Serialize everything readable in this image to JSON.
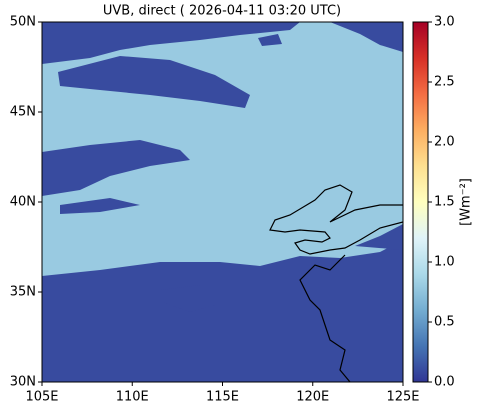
{
  "chart_data": {
    "type": "heatmap",
    "title": "UVB, direct ( 2026-04-11 03:20 UTC)",
    "xlim": [
      105,
      125
    ],
    "xticks": [
      {
        "value": 105,
        "label": "105E"
      },
      {
        "value": 110,
        "label": "110E"
      },
      {
        "value": 115,
        "label": "115E"
      },
      {
        "value": 120,
        "label": "120E"
      },
      {
        "value": 125,
        "label": "125E"
      }
    ],
    "ylim": [
      30,
      50
    ],
    "yticks": [
      {
        "value": 30,
        "label": "30N"
      },
      {
        "value": 35,
        "label": "35N"
      },
      {
        "value": 40,
        "label": "40N"
      },
      {
        "value": 45,
        "label": "45N"
      },
      {
        "value": 50,
        "label": "50N"
      }
    ],
    "field_values": [
      0.8,
      0.1
    ],
    "colorbar_label": "[Wm⁻²]",
    "clim": [
      0,
      3
    ],
    "cticks": [
      {
        "value": 0,
        "label": "0.0"
      },
      {
        "value": 0.5,
        "label": "0.5"
      },
      {
        "value": 1,
        "label": "1.0"
      },
      {
        "value": 1.5,
        "label": "1.5"
      },
      {
        "value": 2,
        "label": "2.0"
      },
      {
        "value": 2.5,
        "label": "2.5"
      },
      {
        "value": 3,
        "label": "3.0"
      }
    ],
    "colormap": [
      "#313695",
      "#4575b4",
      "#74add1",
      "#abd9e9",
      "#e0f3f8",
      "#ffffbf",
      "#fee090",
      "#fdae61",
      "#f46d43",
      "#d73027",
      "#a50026"
    ]
  }
}
